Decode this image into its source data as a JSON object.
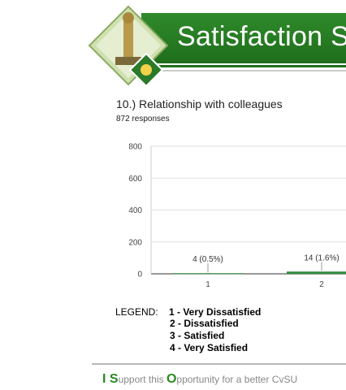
{
  "banner": {
    "title": "Satisfaction S"
  },
  "question": {
    "title": "10.) Relationship with colleagues",
    "responses": "872 responses"
  },
  "chart_data": {
    "type": "bar",
    "categories": [
      "1",
      "2"
    ],
    "values": [
      4,
      14
    ],
    "data_labels": [
      "4 (0.5%)",
      "14 (1.6%)"
    ],
    "title": "10.) Relationship with colleagues",
    "xlabel": "",
    "ylabel": "",
    "ylim": [
      0,
      800
    ],
    "yticks": [
      0,
      200,
      400,
      600,
      800
    ],
    "grid": true,
    "bar_color": "#2e8b3e"
  },
  "legend": {
    "label": "LEGEND:",
    "items": [
      "1  -  Very Dissatisfied",
      "2 -  Dissatisfied",
      "3 -  Satisfied",
      "4 - Very Satisfied"
    ]
  },
  "footer": {
    "part1_big": "I S",
    "part2": "upport this ",
    "part3_big": "O",
    "part4": "pportunity for a better CvSU"
  }
}
